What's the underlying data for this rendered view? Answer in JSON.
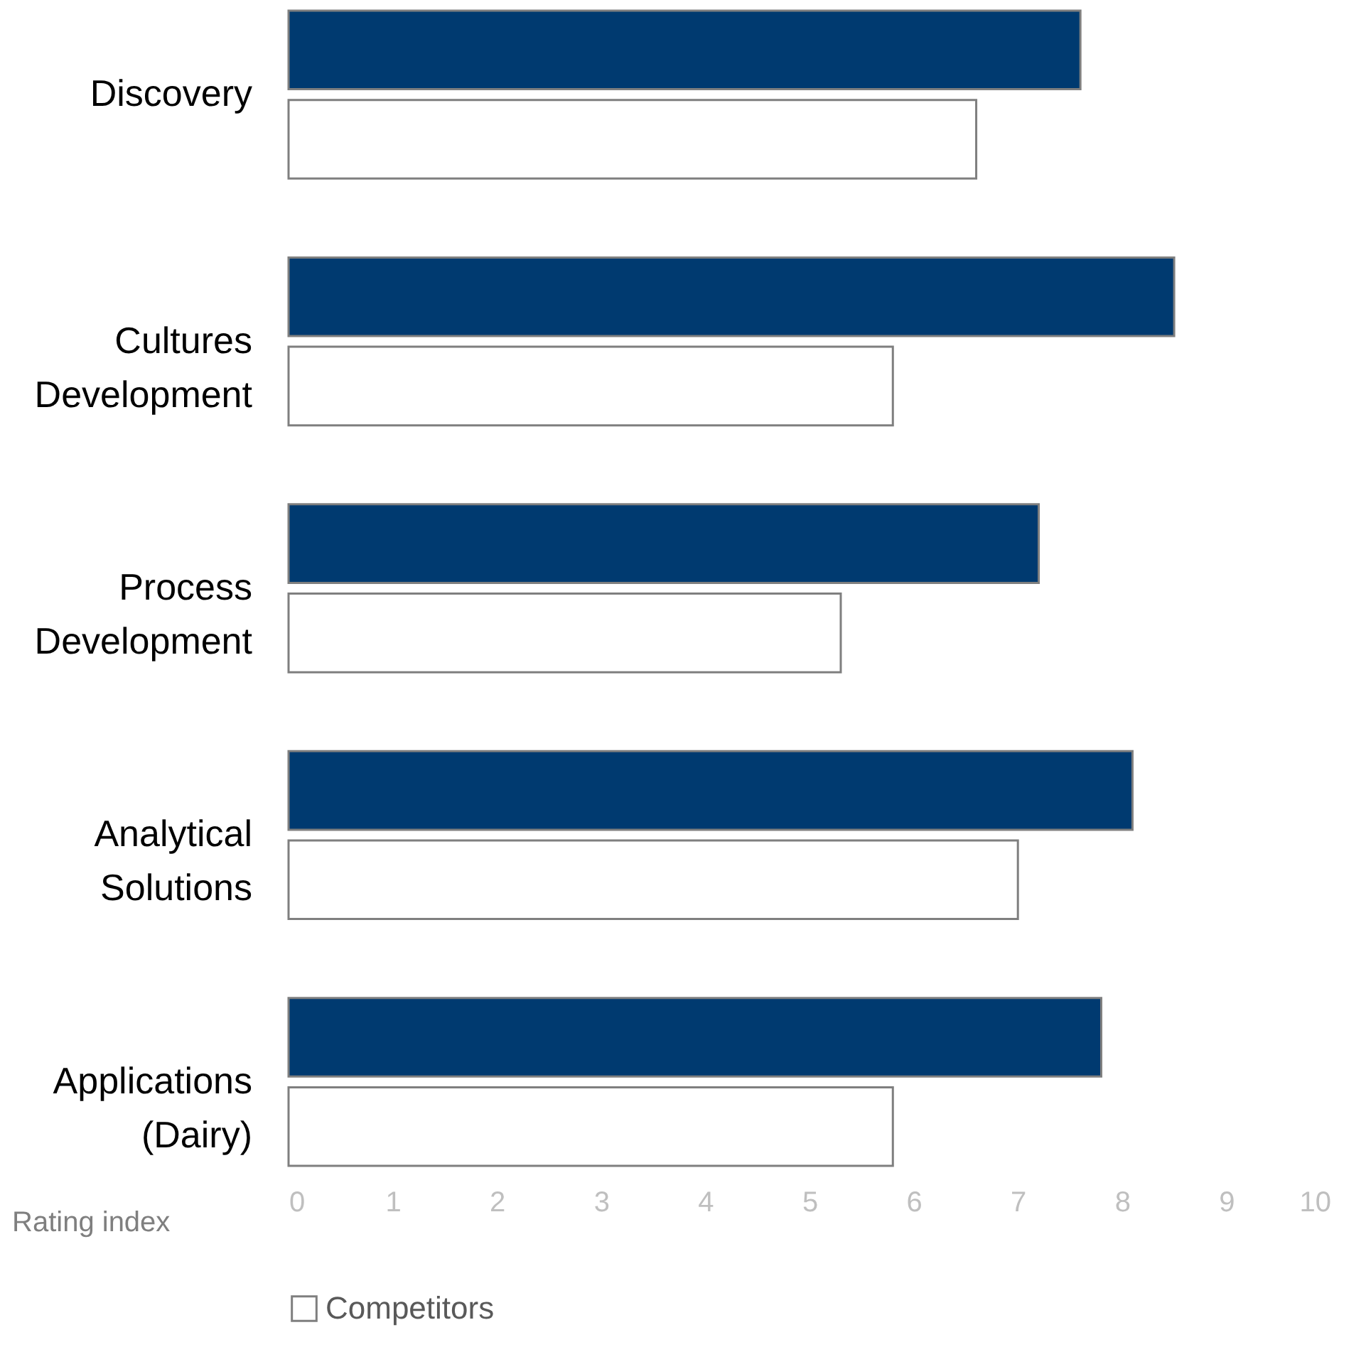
{
  "chart_data": {
    "type": "bar",
    "orientation": "horizontal",
    "xlabel": "Rating index",
    "categories": [
      "Discovery",
      "Cultures Development",
      "Process Development",
      "Analytical Solutions",
      "Applications (Dairy)"
    ],
    "series": [
      {
        "color": "#003a70",
        "values": [
          7.6,
          8.5,
          7.2,
          8.1,
          7.8
        ]
      },
      {
        "name": "Competitors",
        "color": "#ffffff",
        "values": [
          6.6,
          5.8,
          5.3,
          7.0,
          5.8
        ]
      }
    ],
    "xlim": [
      0,
      10
    ],
    "xticks": [
      0,
      1,
      2,
      3,
      4,
      5,
      6,
      7,
      8,
      9,
      10
    ],
    "legend": "bottom left"
  }
}
